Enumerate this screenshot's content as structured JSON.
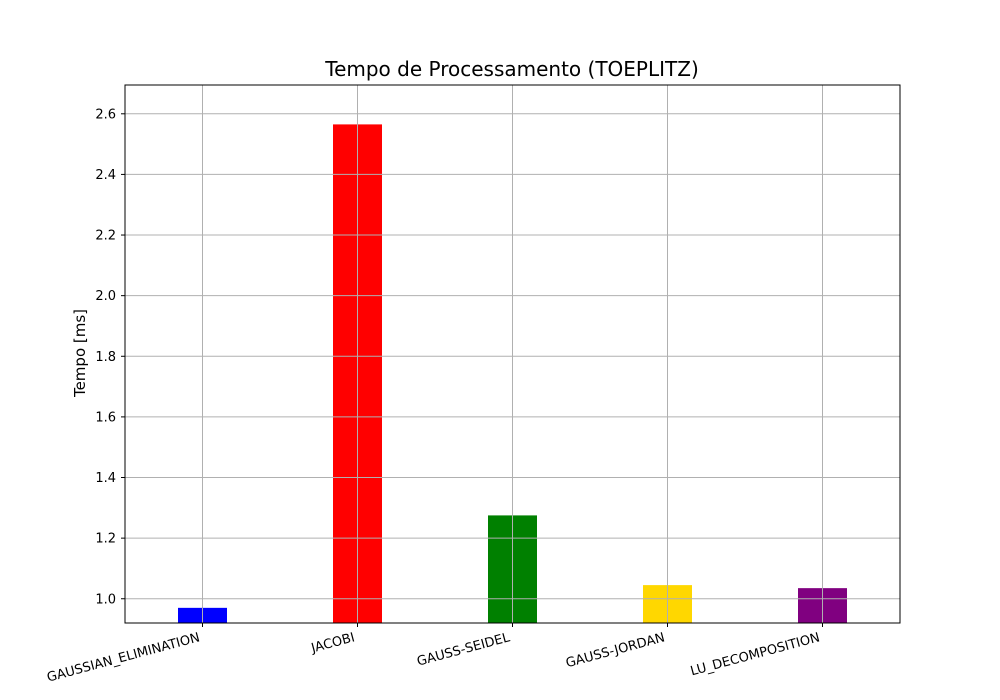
{
  "chart_data": {
    "type": "bar",
    "title": "Tempo de Processamento (TOEPLITZ)",
    "xlabel": "",
    "ylabel": "Tempo [ms]",
    "ylim": [
      0.92,
      2.695
    ],
    "yticks": [
      1.0,
      1.2,
      1.4,
      1.6,
      1.8,
      2.0,
      2.2,
      2.4,
      2.6
    ],
    "ytick_labels": [
      "1.0",
      "1.2",
      "1.4",
      "1.6",
      "1.8",
      "2.0",
      "2.2",
      "2.4",
      "2.6"
    ],
    "grid": true,
    "categories": [
      "GAUSSIAN_ELIMINATION",
      "JACOBI",
      "GAUSS-SEIDEL",
      "GAUSS-JORDAN",
      "LU_DECOMPOSITION"
    ],
    "values": [
      0.97,
      2.565,
      1.275,
      1.045,
      1.035
    ],
    "colors": [
      "#0000ff",
      "#ff0000",
      "#008000",
      "#ffd700",
      "#800080"
    ]
  }
}
